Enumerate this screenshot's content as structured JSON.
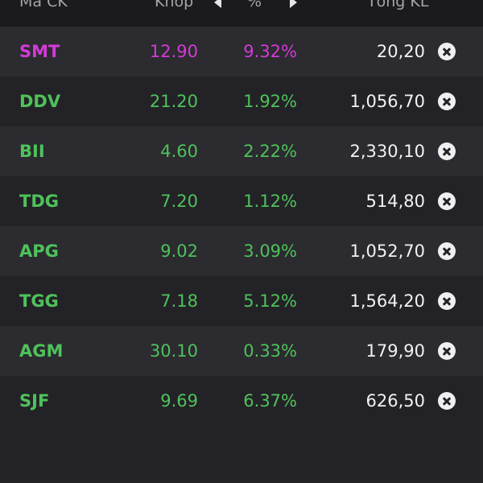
{
  "header": {
    "code_label": "Mã CK",
    "price_label": "Khớp",
    "pct_label": "%",
    "volume_label": "Tổng KL"
  },
  "colors": {
    "ceiling": "#d43ad6",
    "up": "#4ec25a",
    "volume": "#f2f2f2",
    "background": "#232327",
    "row_alt": "#2b2b30"
  },
  "rows": [
    {
      "code": "SMT",
      "price": "12.90",
      "pct": "9.32%",
      "volume": "20,20",
      "status": "ceil"
    },
    {
      "code": "DDV",
      "price": "21.20",
      "pct": "1.92%",
      "volume": "1,056,70",
      "status": "up"
    },
    {
      "code": "BII",
      "price": "4.60",
      "pct": "2.22%",
      "volume": "2,330,10",
      "status": "up"
    },
    {
      "code": "TDG",
      "price": "7.20",
      "pct": "1.12%",
      "volume": "514,80",
      "status": "up"
    },
    {
      "code": "APG",
      "price": "9.02",
      "pct": "3.09%",
      "volume": "1,052,70",
      "status": "up"
    },
    {
      "code": "TGG",
      "price": "7.18",
      "pct": "5.12%",
      "volume": "1,564,20",
      "status": "up"
    },
    {
      "code": "AGM",
      "price": "30.10",
      "pct": "0.33%",
      "volume": "179,90",
      "status": "up"
    },
    {
      "code": "SJF",
      "price": "9.69",
      "pct": "6.37%",
      "volume": "626,50",
      "status": "up"
    }
  ]
}
